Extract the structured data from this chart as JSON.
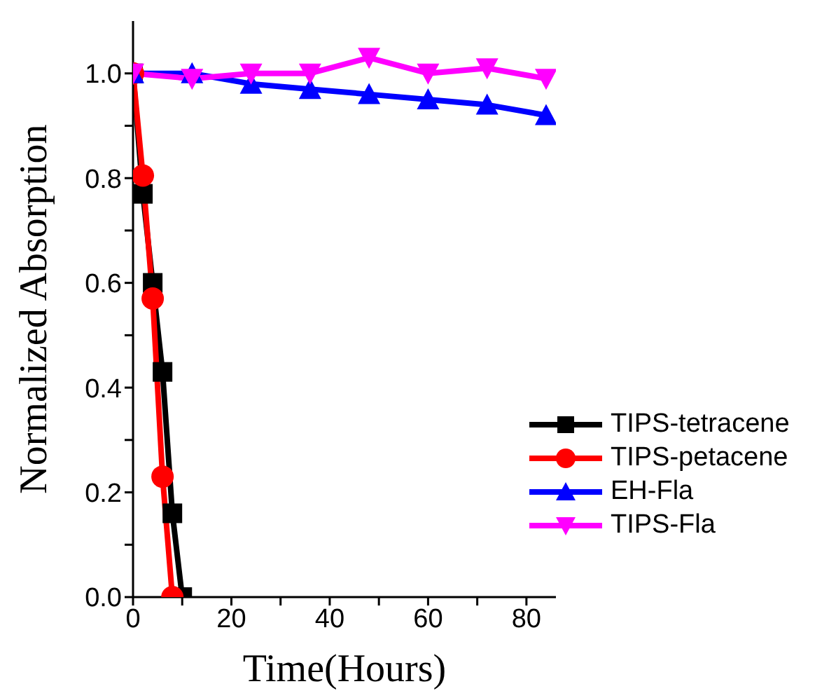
{
  "chart_data": {
    "type": "line",
    "xlabel": "Time(Hours)",
    "ylabel": "Normalized Absorption",
    "xlim": [
      0,
      86
    ],
    "xticks": [
      0,
      {
        "value": 10,
        "label": null
      },
      20,
      {
        "value": 30,
        "label": null
      },
      40,
      {
        "value": 50,
        "label": null
      },
      60,
      {
        "value": 70,
        "label": null
      },
      80
    ],
    "ylim": [
      0,
      1.1
    ],
    "yticks": [
      {
        "value": 0,
        "label": "0.0"
      },
      {
        "value": 0.1,
        "label": null
      },
      {
        "value": 0.2,
        "label": "0.2"
      },
      {
        "value": 0.3,
        "label": null
      },
      {
        "value": 0.4,
        "label": "0.4"
      },
      {
        "value": 0.5,
        "label": null
      },
      {
        "value": 0.6,
        "label": "0.6"
      },
      {
        "value": 0.7,
        "label": null
      },
      {
        "value": 0.8,
        "label": "0.8"
      },
      {
        "value": 0.9,
        "label": null
      },
      {
        "value": 1.0,
        "label": "1.0"
      }
    ],
    "grid": false,
    "legend": "bottom right",
    "line_style": "solid",
    "series": [
      {
        "name": "TIPS-tetracene",
        "color": "#000000",
        "marker": "square",
        "x": [
          0,
          2,
          4,
          6,
          8,
          10
        ],
        "values": [
          1.0,
          0.77,
          0.6,
          0.43,
          0.16,
          0.0
        ]
      },
      {
        "name": "TIPS-petacene",
        "color": "#ff0000",
        "marker": "circle",
        "x": [
          0,
          2,
          4,
          6,
          8
        ],
        "values": [
          1.0,
          0.805,
          0.57,
          0.23,
          0.0
        ]
      },
      {
        "name": "EH-Fla",
        "color": "#0000ff",
        "marker": "triangle",
        "x": [
          0,
          12,
          24,
          36,
          48,
          60,
          72,
          84
        ],
        "values": [
          1.0,
          1.0,
          0.98,
          0.97,
          0.96,
          0.95,
          0.94,
          0.92
        ]
      },
      {
        "name": "TIPS-Fla",
        "color": "#ff00ff",
        "marker": "triangle-down",
        "x": [
          0,
          12,
          24,
          36,
          48,
          60,
          72,
          84
        ],
        "values": [
          1.0,
          0.99,
          1.0,
          1.0,
          1.03,
          1.0,
          1.01,
          0.99
        ]
      }
    ]
  }
}
